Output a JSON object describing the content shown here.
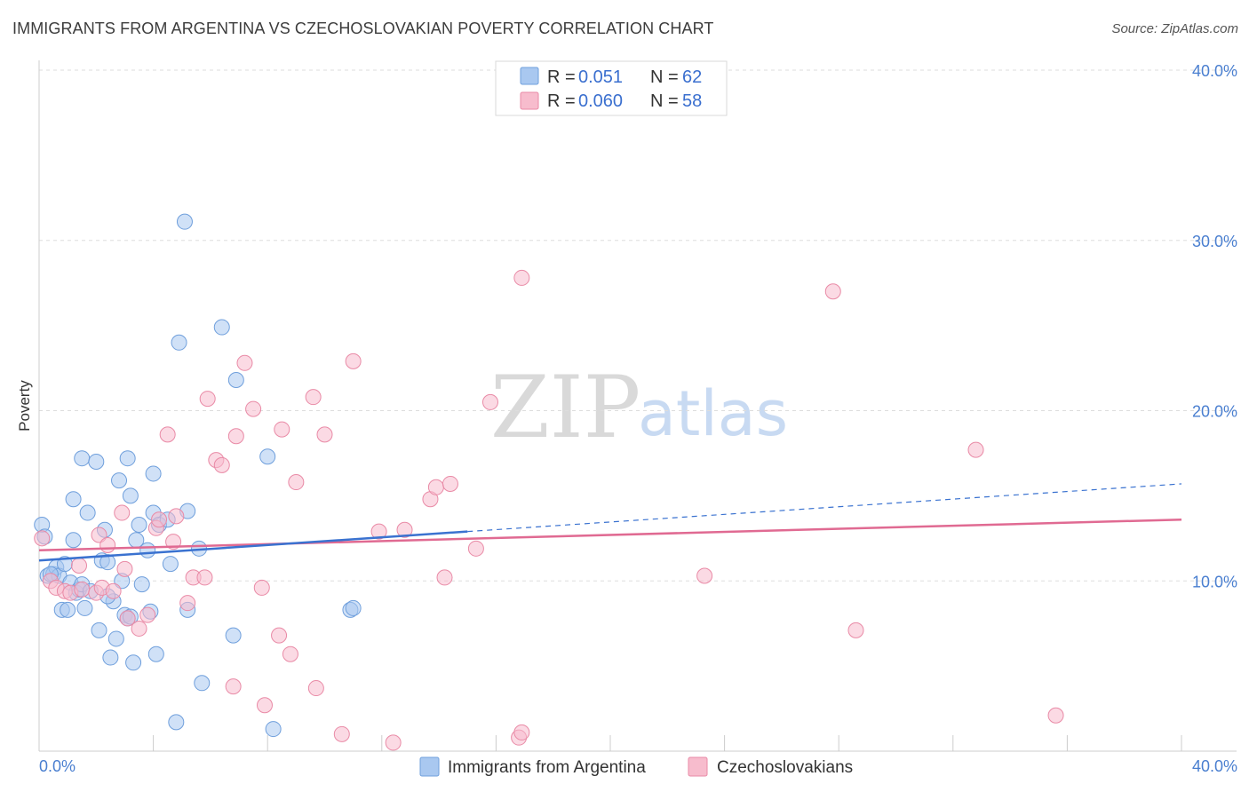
{
  "title": "IMMIGRANTS FROM ARGENTINA VS CZECHOSLOVAKIAN POVERTY CORRELATION CHART",
  "source": "Source: ZipAtlas.com",
  "watermark": {
    "zip": "ZIP",
    "atlas": "atlas"
  },
  "colors": {
    "blue_fill": "#a9c8f0",
    "blue_stroke": "#6f9fdc",
    "blue_line": "#3a72d0",
    "pink_fill": "#f7bccd",
    "pink_stroke": "#e98aa6",
    "pink_line": "#e06a92",
    "tick_text": "#4a7fd0",
    "grid": "#dddddd"
  },
  "legend": {
    "rows": [
      {
        "r_label": "R =",
        "r_value": "0.051",
        "n_label": "N =",
        "n_value": "62"
      },
      {
        "r_label": "R =",
        "r_value": "0.060",
        "n_label": "N =",
        "n_value": "58"
      }
    ]
  },
  "bottom_legend": [
    "Immigrants from Argentina",
    "Czechoslovakians"
  ],
  "chart_data": {
    "type": "scatter",
    "title": "IMMIGRANTS FROM ARGENTINA VS CZECHOSLOVAKIAN POVERTY CORRELATION CHART",
    "xlabel": "",
    "ylabel": "Poverty",
    "xlim": [
      0,
      40
    ],
    "ylim": [
      0,
      40
    ],
    "x_tick_labels": [
      "0.0%",
      "40.0%"
    ],
    "y_tick_values": [
      10,
      20,
      30,
      40
    ],
    "y_tick_labels": [
      "10.0%",
      "20.0%",
      "30.0%",
      "40.0%"
    ],
    "grid": true,
    "series": [
      {
        "name": "Immigrants from Argentina",
        "R": 0.051,
        "N": 62,
        "trend": {
          "x0": 0,
          "y0": 11.2,
          "x1": 15,
          "y1": 12.9,
          "dash_to_x": 40,
          "dash_to_y": 15.7
        },
        "points": [
          [
            0.1,
            13.3
          ],
          [
            0.2,
            12.6
          ],
          [
            0.3,
            10.3
          ],
          [
            0.5,
            10.4
          ],
          [
            0.6,
            10.8
          ],
          [
            0.7,
            10.3
          ],
          [
            0.8,
            8.3
          ],
          [
            1.0,
            8.3
          ],
          [
            0.9,
            11.0
          ],
          [
            1.1,
            9.9
          ],
          [
            1.2,
            12.4
          ],
          [
            1.3,
            9.3
          ],
          [
            1.4,
            9.5
          ],
          [
            1.5,
            9.8
          ],
          [
            1.6,
            8.4
          ],
          [
            1.7,
            14.0
          ],
          [
            1.2,
            14.8
          ],
          [
            1.5,
            17.2
          ],
          [
            2.0,
            17.0
          ],
          [
            2.1,
            7.1
          ],
          [
            2.2,
            11.2
          ],
          [
            2.3,
            13.0
          ],
          [
            2.4,
            11.1
          ],
          [
            2.5,
            5.5
          ],
          [
            2.6,
            8.8
          ],
          [
            2.7,
            6.6
          ],
          [
            2.8,
            15.9
          ],
          [
            2.9,
            10.0
          ],
          [
            3.0,
            8.0
          ],
          [
            3.1,
            7.8
          ],
          [
            3.1,
            17.2
          ],
          [
            3.2,
            15.0
          ],
          [
            3.3,
            5.2
          ],
          [
            3.4,
            12.4
          ],
          [
            3.5,
            13.3
          ],
          [
            3.6,
            9.8
          ],
          [
            3.8,
            11.8
          ],
          [
            3.9,
            8.2
          ],
          [
            4.0,
            14.0
          ],
          [
            4.0,
            16.3
          ],
          [
            4.1,
            5.7
          ],
          [
            4.2,
            13.3
          ],
          [
            4.5,
            13.6
          ],
          [
            4.6,
            11.0
          ],
          [
            4.8,
            1.7
          ],
          [
            4.9,
            24.0
          ],
          [
            5.1,
            31.1
          ],
          [
            5.2,
            14.1
          ],
          [
            5.2,
            8.3
          ],
          [
            5.6,
            11.9
          ],
          [
            5.7,
            4.0
          ],
          [
            6.4,
            24.9
          ],
          [
            6.8,
            6.8
          ],
          [
            6.9,
            21.8
          ],
          [
            8.0,
            17.3
          ],
          [
            8.2,
            1.3
          ],
          [
            10.9,
            8.3
          ],
          [
            11.0,
            8.4
          ],
          [
            3.2,
            7.9
          ],
          [
            1.8,
            9.4
          ],
          [
            0.4,
            10.4
          ],
          [
            2.4,
            9.1
          ]
        ]
      },
      {
        "name": "Czechoslovakians",
        "R": 0.06,
        "N": 58,
        "trend": {
          "x0": 0,
          "y0": 11.8,
          "x1": 40,
          "y1": 13.6
        },
        "points": [
          [
            0.1,
            12.5
          ],
          [
            0.4,
            10.0
          ],
          [
            0.6,
            9.6
          ],
          [
            0.9,
            9.4
          ],
          [
            1.1,
            9.3
          ],
          [
            1.4,
            10.9
          ],
          [
            1.5,
            9.5
          ],
          [
            2.0,
            9.3
          ],
          [
            2.1,
            12.7
          ],
          [
            2.2,
            9.6
          ],
          [
            2.4,
            12.1
          ],
          [
            2.6,
            9.4
          ],
          [
            2.9,
            14.0
          ],
          [
            3.0,
            10.7
          ],
          [
            3.1,
            7.8
          ],
          [
            3.5,
            7.2
          ],
          [
            3.8,
            8.0
          ],
          [
            4.1,
            13.1
          ],
          [
            4.2,
            13.6
          ],
          [
            4.5,
            18.6
          ],
          [
            4.7,
            12.3
          ],
          [
            4.8,
            13.8
          ],
          [
            5.2,
            8.7
          ],
          [
            5.4,
            10.2
          ],
          [
            5.8,
            10.2
          ],
          [
            5.9,
            20.7
          ],
          [
            6.2,
            17.1
          ],
          [
            6.4,
            16.8
          ],
          [
            6.8,
            3.8
          ],
          [
            6.9,
            18.5
          ],
          [
            7.2,
            22.8
          ],
          [
            7.5,
            20.1
          ],
          [
            7.8,
            9.6
          ],
          [
            7.9,
            2.7
          ],
          [
            8.4,
            6.8
          ],
          [
            8.5,
            18.9
          ],
          [
            8.8,
            5.7
          ],
          [
            9.0,
            15.8
          ],
          [
            9.6,
            20.8
          ],
          [
            9.7,
            3.7
          ],
          [
            10.0,
            18.6
          ],
          [
            10.6,
            1.0
          ],
          [
            11.0,
            22.9
          ],
          [
            11.9,
            12.9
          ],
          [
            12.4,
            0.5
          ],
          [
            12.8,
            13.0
          ],
          [
            13.7,
            14.8
          ],
          [
            13.9,
            15.5
          ],
          [
            14.2,
            10.2
          ],
          [
            14.4,
            15.7
          ],
          [
            15.3,
            11.9
          ],
          [
            15.8,
            20.5
          ],
          [
            16.8,
            0.8
          ],
          [
            16.9,
            1.1
          ],
          [
            16.9,
            27.8
          ],
          [
            23.3,
            10.3
          ],
          [
            27.8,
            27.0
          ],
          [
            28.6,
            7.1
          ],
          [
            32.8,
            17.7
          ],
          [
            35.6,
            2.1
          ]
        ]
      }
    ]
  }
}
